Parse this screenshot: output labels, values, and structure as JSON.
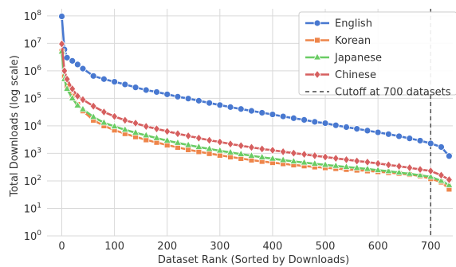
{
  "chart_data": {
    "type": "line",
    "title": "",
    "xlabel": "Dataset Rank (Sorted by Downloads)",
    "ylabel": "Total Downloads (log scale)",
    "y_scale": "log",
    "xlim": [
      -28,
      742
    ],
    "ylim": [
      1,
      180000000
    ],
    "grid": true,
    "legend_position": "top-right",
    "x_ticks": [
      0,
      100,
      200,
      300,
      400,
      500,
      600,
      700
    ],
    "y_ticks": [
      {
        "value": 1,
        "base": "10",
        "exp": "0"
      },
      {
        "value": 10,
        "base": "10",
        "exp": "1"
      },
      {
        "value": 100,
        "base": "10",
        "exp": "2"
      },
      {
        "value": 1000,
        "base": "10",
        "exp": "3"
      },
      {
        "value": 10000,
        "base": "10",
        "exp": "4"
      },
      {
        "value": 100000,
        "base": "10",
        "exp": "5"
      },
      {
        "value": 1000000,
        "base": "10",
        "exp": "6"
      },
      {
        "value": 10000000,
        "base": "10",
        "exp": "7"
      },
      {
        "value": 100000000,
        "base": "10",
        "exp": "8"
      }
    ],
    "series": [
      {
        "name": "English",
        "color": "#4878d0",
        "marker": "circle",
        "x": [
          0,
          5,
          10,
          20,
          30,
          40,
          60,
          80,
          100,
          120,
          140,
          160,
          180,
          200,
          220,
          240,
          260,
          280,
          300,
          320,
          340,
          360,
          380,
          400,
          420,
          440,
          460,
          480,
          500,
          520,
          540,
          560,
          580,
          600,
          620,
          640,
          660,
          680,
          700,
          720,
          735
        ],
        "y": [
          95000000,
          6000000,
          3000000,
          2300000,
          1700000,
          1200000,
          650000,
          500000,
          400000,
          320000,
          250000,
          200000,
          170000,
          140000,
          115000,
          98000,
          82000,
          68000,
          57000,
          48000,
          41000,
          35000,
          30000,
          26000,
          22000,
          19000,
          16500,
          14000,
          12500,
          10500,
          9000,
          7800,
          6700,
          5800,
          5000,
          4200,
          3500,
          2900,
          2300,
          1700,
          800
        ]
      },
      {
        "name": "Korean",
        "color": "#ee854a",
        "marker": "square",
        "x": [
          0,
          5,
          10,
          20,
          30,
          40,
          60,
          80,
          100,
          120,
          140,
          160,
          180,
          200,
          220,
          240,
          260,
          280,
          300,
          320,
          340,
          360,
          380,
          400,
          420,
          440,
          460,
          480,
          500,
          520,
          540,
          560,
          580,
          600,
          620,
          640,
          660,
          680,
          700,
          720,
          735
        ],
        "y": [
          5000000,
          600000,
          280000,
          120000,
          60000,
          35000,
          16000,
          10000,
          7000,
          5200,
          4000,
          3100,
          2500,
          2000,
          1650,
          1350,
          1150,
          980,
          850,
          740,
          650,
          570,
          510,
          460,
          420,
          380,
          350,
          320,
          300,
          280,
          260,
          245,
          230,
          215,
          200,
          185,
          170,
          150,
          120,
          90,
          50
        ]
      },
      {
        "name": "Japanese",
        "color": "#6acc64",
        "marker": "triangle",
        "x": [
          0,
          5,
          10,
          20,
          30,
          40,
          60,
          80,
          100,
          120,
          140,
          160,
          180,
          200,
          220,
          240,
          260,
          280,
          300,
          320,
          340,
          360,
          380,
          400,
          420,
          440,
          460,
          480,
          500,
          520,
          540,
          560,
          580,
          600,
          620,
          640,
          660,
          680,
          700,
          720,
          735
        ],
        "y": [
          5000000,
          500000,
          220000,
          100000,
          55000,
          40000,
          21000,
          13000,
          9500,
          7200,
          5600,
          4500,
          3600,
          2900,
          2400,
          2000,
          1700,
          1450,
          1250,
          1080,
          940,
          820,
          720,
          640,
          570,
          510,
          460,
          420,
          380,
          350,
          320,
          295,
          270,
          245,
          225,
          200,
          180,
          160,
          140,
          100,
          70
        ]
      },
      {
        "name": "Chinese",
        "color": "#d65f5f",
        "marker": "diamond",
        "x": [
          0,
          5,
          10,
          20,
          30,
          40,
          60,
          80,
          100,
          120,
          140,
          160,
          180,
          200,
          220,
          240,
          260,
          280,
          300,
          320,
          340,
          360,
          380,
          400,
          420,
          440,
          460,
          480,
          500,
          520,
          540,
          560,
          580,
          600,
          620,
          640,
          660,
          680,
          700,
          720,
          735
        ],
        "y": [
          9500000,
          1000000,
          500000,
          220000,
          120000,
          90000,
          52000,
          32000,
          22000,
          16000,
          12500,
          9500,
          7800,
          6300,
          5200,
          4300,
          3600,
          3000,
          2600,
          2200,
          1900,
          1650,
          1450,
          1300,
          1150,
          1020,
          920,
          820,
          740,
          660,
          590,
          530,
          480,
          430,
          380,
          340,
          300,
          260,
          230,
          160,
          110
        ]
      }
    ],
    "reference_lines": [
      {
        "name": "Cutoff at 700 datasets",
        "x": 700,
        "color": "#444444",
        "style": "dashed"
      }
    ]
  }
}
